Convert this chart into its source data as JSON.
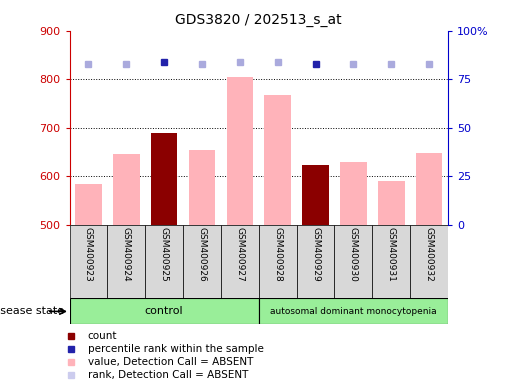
{
  "title": "GDS3820 / 202513_s_at",
  "samples": [
    "GSM400923",
    "GSM400924",
    "GSM400925",
    "GSM400926",
    "GSM400927",
    "GSM400928",
    "GSM400929",
    "GSM400930",
    "GSM400931",
    "GSM400932"
  ],
  "bar_values": [
    583,
    645,
    690,
    653,
    805,
    768,
    623,
    630,
    590,
    648
  ],
  "bar_colors": [
    "#ffb3ba",
    "#ffb3ba",
    "#8b0000",
    "#ffb3ba",
    "#ffb3ba",
    "#ffb3ba",
    "#8b0000",
    "#ffb3ba",
    "#ffb3ba",
    "#ffb3ba"
  ],
  "percentile_ranks": [
    83,
    83,
    84,
    83,
    84,
    84,
    83,
    83,
    83,
    83
  ],
  "percentile_colors": [
    "#aaaadd",
    "#aaaadd",
    "#2222aa",
    "#aaaadd",
    "#aaaadd",
    "#aaaadd",
    "#2222aa",
    "#aaaadd",
    "#aaaadd",
    "#aaaadd"
  ],
  "ymin": 500,
  "ymax": 900,
  "yticks": [
    500,
    600,
    700,
    800,
    900
  ],
  "right_yticks": [
    0,
    25,
    50,
    75,
    100
  ],
  "control_label": "control",
  "disease_label": "autosomal dominant monocytopenia",
  "disease_state_label": "disease state",
  "legend_items": [
    {
      "color": "#8b0000",
      "label": "count"
    },
    {
      "color": "#2222aa",
      "label": "percentile rank within the sample"
    },
    {
      "color": "#ffb3ba",
      "label": "value, Detection Call = ABSENT"
    },
    {
      "color": "#ccccee",
      "label": "rank, Detection Call = ABSENT"
    }
  ],
  "bar_width": 0.7,
  "ylabel_color": "#cc0000",
  "right_ylabel_color": "#0000cc",
  "control_bg": "#99ee99",
  "disease_bg": "#99ee99",
  "n_control": 5,
  "n_disease": 5
}
